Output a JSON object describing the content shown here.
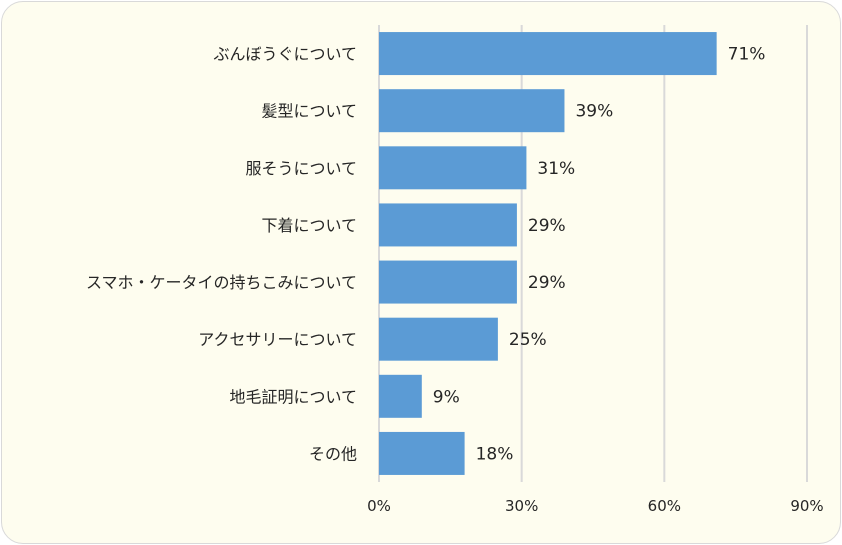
{
  "chart_data": {
    "type": "bar",
    "orientation": "horizontal",
    "categories": [
      "ぶんぼうぐについて",
      "髪型について",
      "服そうについて",
      "下着について",
      "スマホ・ケータイの持ちこみについて",
      "アクセサリーについて",
      "地毛証明について",
      "その他"
    ],
    "values": [
      71,
      39,
      31,
      29,
      29,
      25,
      9,
      18
    ],
    "value_labels": [
      "71%",
      "39%",
      "31%",
      "29%",
      "29%",
      "25%",
      "9%",
      "18%"
    ],
    "x_ticks": [
      "0%",
      "30%",
      "60%",
      "90%"
    ],
    "xlim": [
      0,
      90
    ],
    "grid": true,
    "legend": "none",
    "colors": {
      "bar": "#5b9bd5",
      "background": "#fefdef",
      "grid": "#d9d9d9"
    }
  }
}
